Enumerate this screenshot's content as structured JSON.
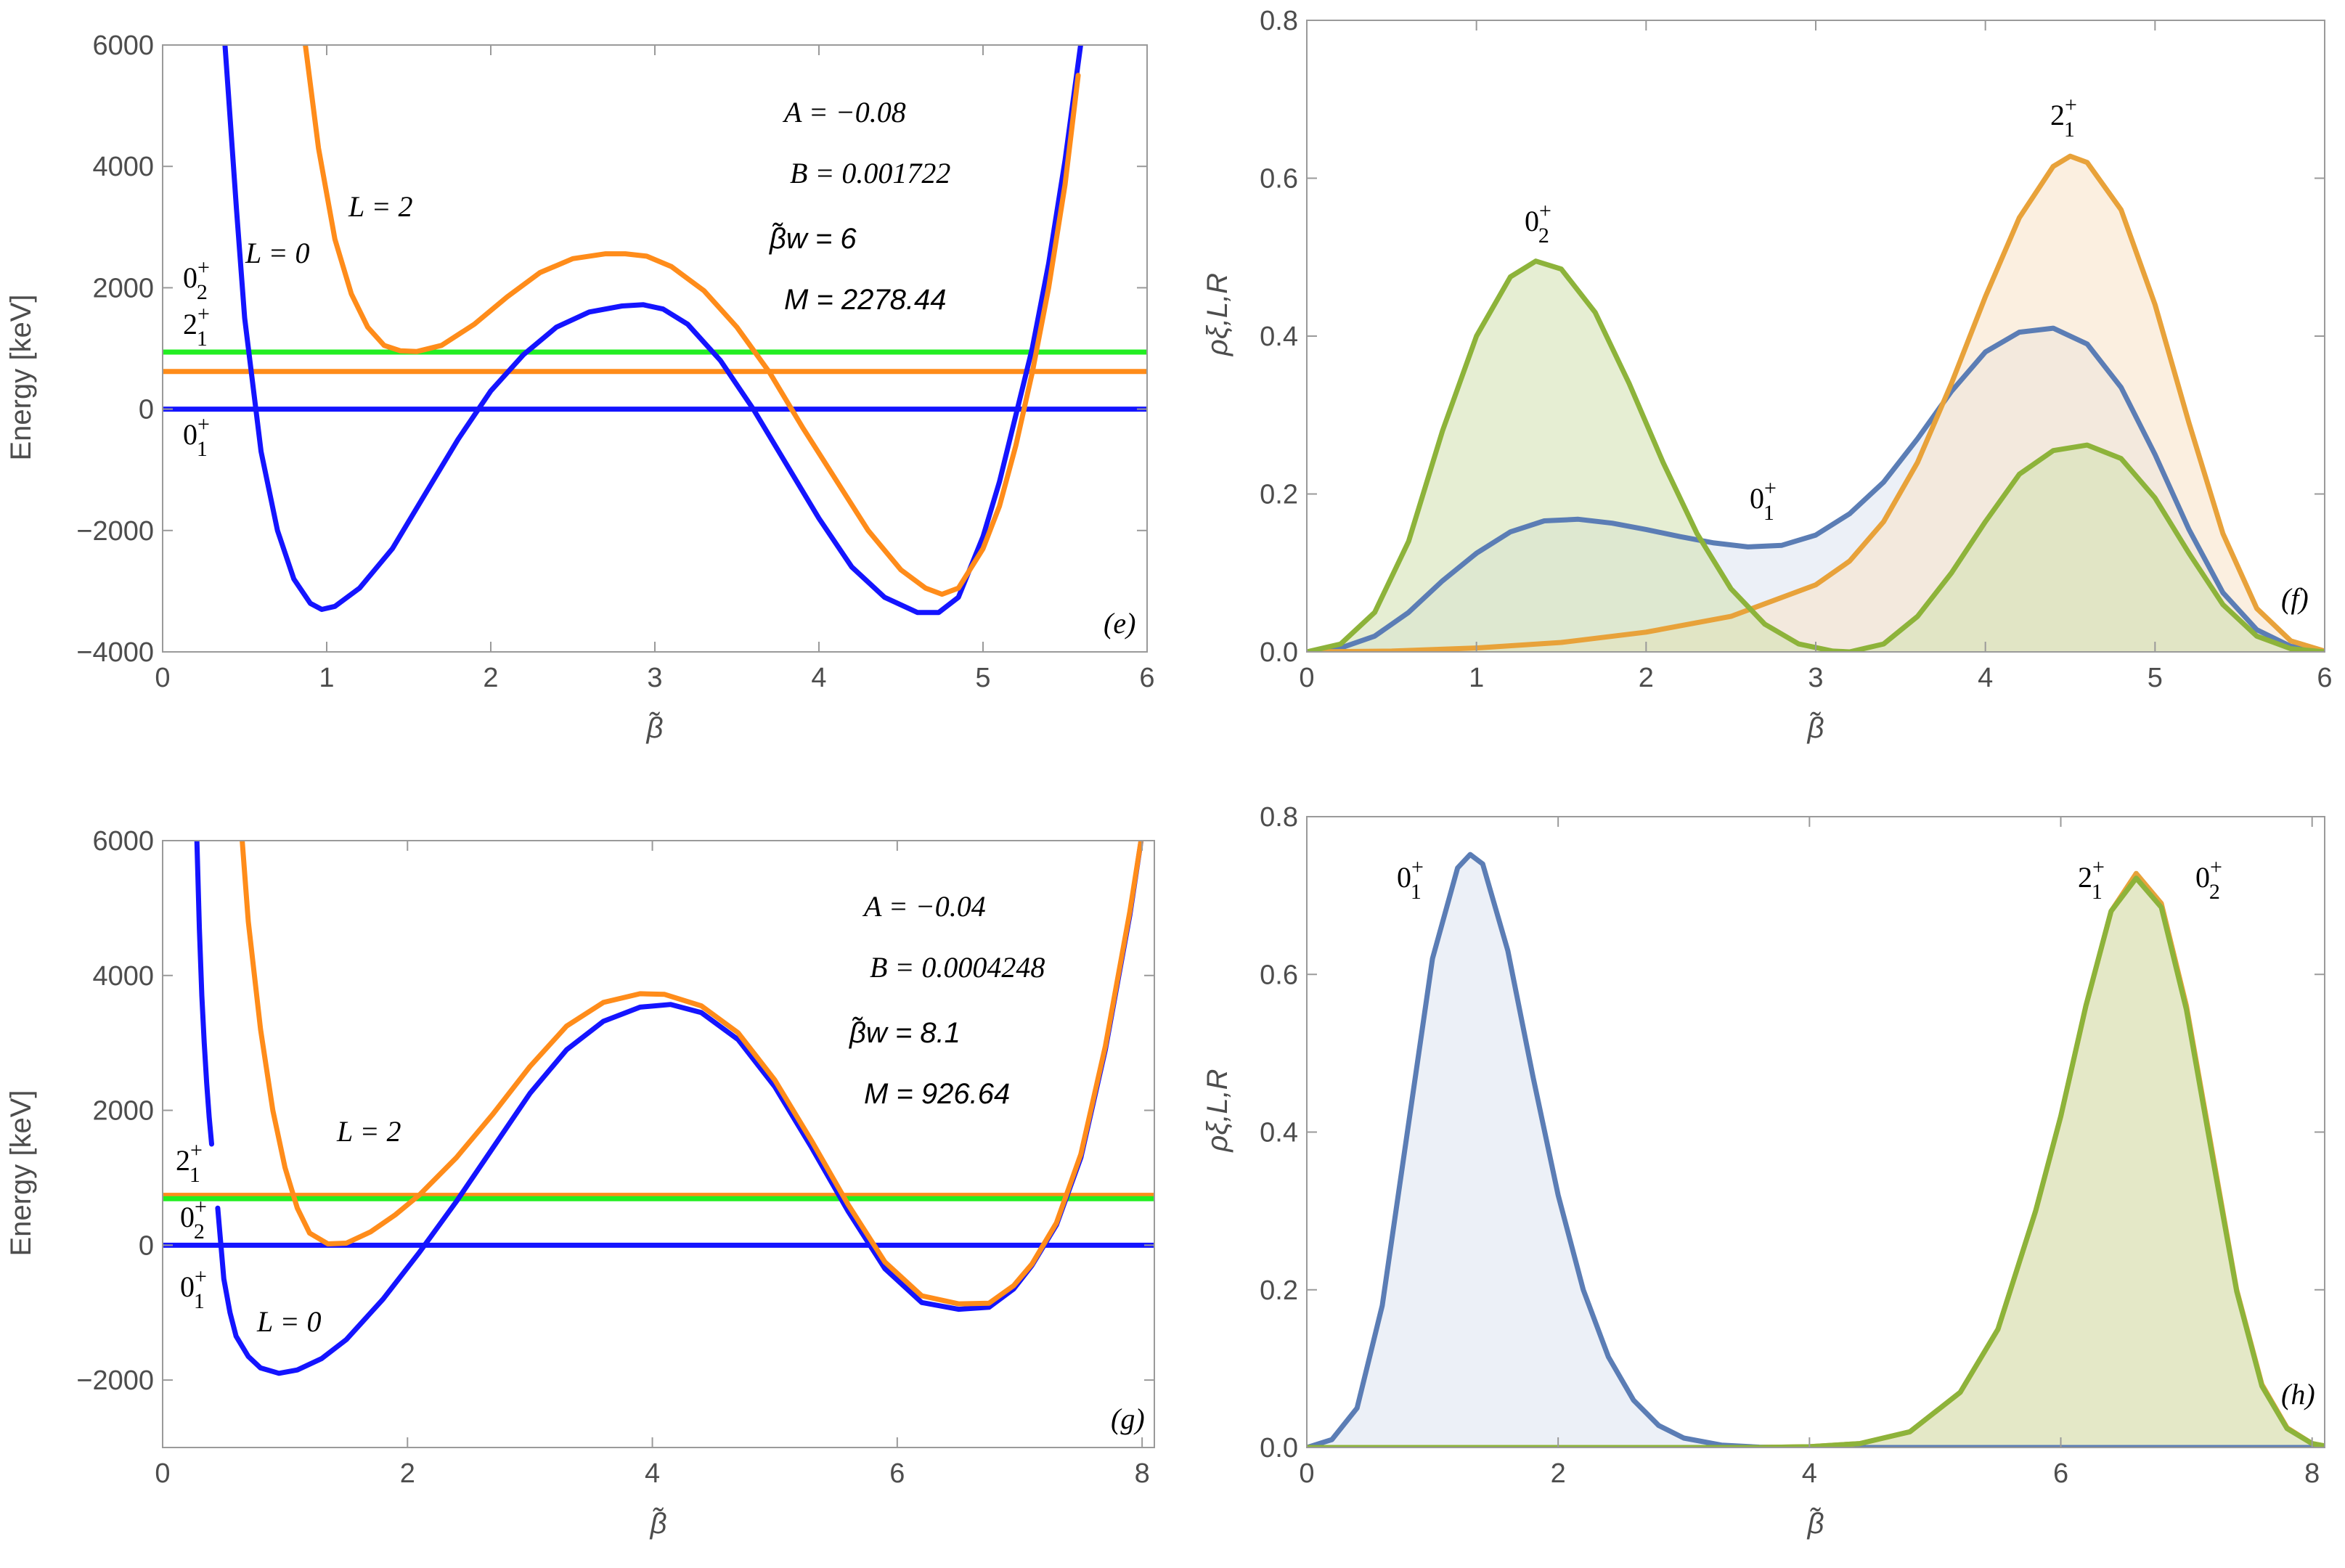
{
  "chart_data": [
    {
      "id": "e",
      "type": "line",
      "panel_label": "(e)",
      "xlabel": "β̃",
      "ylabel": "Energy [keV]",
      "xlim": [
        0,
        6
      ],
      "ylim": [
        -4000,
        6000
      ],
      "xticks": [
        0,
        1,
        2,
        3,
        4,
        5,
        6
      ],
      "yticks": [
        -4000,
        -2000,
        0,
        2000,
        4000,
        6000
      ],
      "params": {
        "A": "A = −0.08",
        "B": "B = 0.001722",
        "beta_w": "β̃w = 6",
        "M": "M = 2278.44"
      },
      "series": [
        {
          "name": "L=0",
          "label": "L = 0",
          "color": "#1414ff",
          "x": [
            0.38,
            0.45,
            0.5,
            0.6,
            0.7,
            0.8,
            0.9,
            0.97,
            1.05,
            1.2,
            1.4,
            1.6,
            1.8,
            2.0,
            2.2,
            2.4,
            2.6,
            2.8,
            2.93,
            3.05,
            3.2,
            3.4,
            3.6,
            3.8,
            4.0,
            4.2,
            4.4,
            4.6,
            4.73,
            4.85,
            5.0,
            5.1,
            5.2,
            5.3,
            5.4,
            5.5,
            5.6
          ],
          "y": [
            6000,
            3300,
            1500,
            -700,
            -2000,
            -2800,
            -3200,
            -3300,
            -3250,
            -2950,
            -2300,
            -1400,
            -500,
            300,
            900,
            1350,
            1600,
            1700,
            1720,
            1650,
            1400,
            800,
            0,
            -900,
            -1800,
            -2600,
            -3100,
            -3350,
            -3350,
            -3100,
            -2100,
            -1200,
            -100,
            1000,
            2400,
            4100,
            6100
          ]
        },
        {
          "name": "L=2",
          "label": "L = 2",
          "color": "#ff8c1a",
          "x": [
            0.87,
            0.95,
            1.05,
            1.15,
            1.25,
            1.35,
            1.45,
            1.55,
            1.7,
            1.9,
            2.1,
            2.3,
            2.5,
            2.7,
            2.82,
            2.95,
            3.1,
            3.3,
            3.5,
            3.7,
            3.9,
            4.1,
            4.3,
            4.5,
            4.65,
            4.75,
            4.85,
            5.0,
            5.1,
            5.2,
            5.3,
            5.4,
            5.5,
            5.58
          ],
          "y": [
            6000,
            4300,
            2800,
            1900,
            1350,
            1050,
            960,
            950,
            1050,
            1400,
            1850,
            2250,
            2480,
            2560,
            2560,
            2520,
            2350,
            1950,
            1350,
            600,
            -300,
            -1150,
            -2000,
            -2650,
            -2950,
            -3050,
            -2950,
            -2300,
            -1600,
            -600,
            600,
            2000,
            3700,
            5500
          ]
        },
        {
          "name": "0_1+",
          "label": "01+",
          "color": "#1414ff",
          "y_const": 0
        },
        {
          "name": "2_1+",
          "label": "21+",
          "color": "#ff8c1a",
          "y_const": 620
        },
        {
          "name": "0_2+",
          "label": "02+",
          "color": "#22ee22",
          "y_const": 940
        }
      ]
    },
    {
      "id": "f",
      "type": "area",
      "panel_label": "(f)",
      "xlabel": "β̃",
      "ylabel": "ρξ,L,R",
      "xlim": [
        0,
        6
      ],
      "ylim": [
        0,
        0.8
      ],
      "xticks": [
        0,
        1,
        2,
        3,
        4,
        5,
        6
      ],
      "yticks": [
        0.0,
        0.2,
        0.4,
        0.6,
        0.8
      ],
      "series": [
        {
          "name": "0_1+",
          "label": "01+",
          "color": "#5b7db5",
          "fill": "#dfe6f1",
          "x": [
            0,
            0.2,
            0.4,
            0.6,
            0.8,
            1.0,
            1.2,
            1.4,
            1.6,
            1.8,
            2.0,
            2.2,
            2.4,
            2.6,
            2.8,
            3.0,
            3.2,
            3.4,
            3.6,
            3.8,
            4.0,
            4.2,
            4.4,
            4.6,
            4.8,
            5.0,
            5.2,
            5.4,
            5.6,
            5.8,
            6.0
          ],
          "y": [
            0,
            0.005,
            0.02,
            0.05,
            0.09,
            0.125,
            0.152,
            0.166,
            0.168,
            0.163,
            0.155,
            0.146,
            0.138,
            0.133,
            0.135,
            0.148,
            0.175,
            0.215,
            0.27,
            0.33,
            0.38,
            0.405,
            0.41,
            0.39,
            0.335,
            0.25,
            0.155,
            0.075,
            0.028,
            0.007,
            0.001
          ]
        },
        {
          "name": "2_1+",
          "label": "21+",
          "color": "#e8a23a",
          "fill": "#f8e5cc",
          "x": [
            0,
            0.5,
            1.0,
            1.5,
            2.0,
            2.5,
            3.0,
            3.2,
            3.4,
            3.6,
            3.8,
            4.0,
            4.2,
            4.4,
            4.5,
            4.6,
            4.8,
            5.0,
            5.2,
            5.4,
            5.6,
            5.8,
            6.0
          ],
          "y": [
            0,
            0.001,
            0.005,
            0.012,
            0.025,
            0.045,
            0.085,
            0.115,
            0.165,
            0.24,
            0.34,
            0.45,
            0.55,
            0.615,
            0.628,
            0.62,
            0.56,
            0.44,
            0.29,
            0.15,
            0.055,
            0.014,
            0.001
          ]
        },
        {
          "name": "0_2+",
          "label": "02+",
          "color": "#8db33a",
          "fill": "#d6e2b5",
          "x": [
            0,
            0.2,
            0.4,
            0.6,
            0.8,
            1.0,
            1.2,
            1.35,
            1.5,
            1.7,
            1.9,
            2.1,
            2.3,
            2.5,
            2.7,
            2.9,
            3.1,
            3.2,
            3.4,
            3.6,
            3.8,
            4.0,
            4.2,
            4.4,
            4.6,
            4.8,
            5.0,
            5.2,
            5.4,
            5.6,
            5.8,
            6.0
          ],
          "y": [
            0,
            0.01,
            0.05,
            0.14,
            0.28,
            0.4,
            0.475,
            0.495,
            0.485,
            0.43,
            0.34,
            0.24,
            0.15,
            0.08,
            0.035,
            0.01,
            0.001,
            0.0,
            0.01,
            0.045,
            0.1,
            0.165,
            0.225,
            0.255,
            0.262,
            0.245,
            0.195,
            0.125,
            0.06,
            0.02,
            0.004,
            0.0
          ]
        }
      ]
    },
    {
      "id": "g",
      "type": "line",
      "panel_label": "(g)",
      "xlabel": "β̃",
      "ylabel": "Energy [keV]",
      "xlim": [
        0,
        8.1
      ],
      "ylim": [
        -3000,
        6000
      ],
      "xticks": [
        0,
        2,
        4,
        6,
        8
      ],
      "yticks": [
        -2000,
        0,
        2000,
        4000,
        6000
      ],
      "params": {
        "A": "A = −0.04",
        "B": "B = 0.0004248",
        "beta_w": "β̃w = 8.1",
        "M": "M = 926.64"
      },
      "series": [
        {
          "name": "L=0",
          "label": "L = 0",
          "color": "#1414ff",
          "x": [
            0.45,
            0.5,
            0.55,
            0.6,
            0.7,
            0.8,
            0.95,
            1.1,
            1.3,
            1.5,
            1.8,
            2.1,
            2.4,
            2.7,
            3.0,
            3.3,
            3.6,
            3.9,
            4.15,
            4.4,
            4.7,
            5.0,
            5.3,
            5.6,
            5.9,
            6.2,
            6.5,
            6.75,
            6.95,
            7.1,
            7.3,
            7.5,
            7.7,
            7.9,
            8.0
          ],
          "y": [
            550,
            -500,
            -1000,
            -1350,
            -1650,
            -1820,
            -1900,
            -1850,
            -1680,
            -1400,
            -800,
            -100,
            650,
            1450,
            2250,
            2900,
            3320,
            3530,
            3570,
            3450,
            3050,
            2350,
            1450,
            500,
            -350,
            -850,
            -950,
            -920,
            -650,
            -300,
            300,
            1300,
            2900,
            4900,
            6100
          ]
        },
        {
          "name": "L=0 (upper branch)",
          "label": "",
          "color": "#1414ff",
          "x": [
            0.28,
            0.3,
            0.32,
            0.34,
            0.36,
            0.38,
            0.4
          ],
          "y": [
            6000,
            4700,
            3700,
            3000,
            2400,
            1900,
            1500
          ]
        },
        {
          "name": "L=2",
          "label": "L = 2",
          "color": "#ff8c1a",
          "x": [
            0.65,
            0.7,
            0.8,
            0.9,
            1.0,
            1.1,
            1.2,
            1.35,
            1.5,
            1.7,
            1.9,
            2.1,
            2.4,
            2.7,
            3.0,
            3.3,
            3.6,
            3.9,
            4.1,
            4.4,
            4.7,
            5.0,
            5.3,
            5.6,
            5.9,
            6.2,
            6.5,
            6.75,
            6.95,
            7.1,
            7.3,
            7.5,
            7.7,
            7.9,
            8.0
          ],
          "y": [
            6000,
            4800,
            3200,
            2000,
            1150,
            550,
            180,
            20,
            30,
            200,
            450,
            750,
            1300,
            1950,
            2650,
            3250,
            3600,
            3730,
            3720,
            3550,
            3150,
            2450,
            1550,
            600,
            -250,
            -750,
            -870,
            -860,
            -600,
            -280,
            330,
            1350,
            2950,
            4950,
            6100
          ]
        },
        {
          "name": "0_1+",
          "label": "01+",
          "color": "#1414ff",
          "y_const": 0
        },
        {
          "name": "2_1+",
          "label": "21+",
          "color": "#ff8c1a",
          "y_const": 740
        },
        {
          "name": "0_2+",
          "label": "02+",
          "color": "#22ee22",
          "y_const": 690
        }
      ]
    },
    {
      "id": "h",
      "type": "area",
      "panel_label": "(h)",
      "xlabel": "β̃",
      "ylabel": "ρξ,L,R",
      "xlim": [
        0,
        8.1
      ],
      "ylim": [
        0,
        0.8
      ],
      "xticks": [
        0,
        2,
        4,
        6,
        8
      ],
      "yticks": [
        0.0,
        0.2,
        0.4,
        0.6,
        0.8
      ],
      "series": [
        {
          "name": "0_1+",
          "label": "01+",
          "color": "#5b7db5",
          "fill": "#dfe6f1",
          "x": [
            0,
            0.2,
            0.4,
            0.6,
            0.8,
            1.0,
            1.2,
            1.3,
            1.4,
            1.6,
            1.8,
            2.0,
            2.2,
            2.4,
            2.6,
            2.8,
            3.0,
            3.3,
            3.6,
            4.0,
            8.1
          ],
          "y": [
            0,
            0.01,
            0.05,
            0.18,
            0.4,
            0.62,
            0.735,
            0.752,
            0.74,
            0.63,
            0.47,
            0.32,
            0.2,
            0.115,
            0.06,
            0.028,
            0.012,
            0.003,
            0.0005,
            0,
            0
          ]
        },
        {
          "name": "2_1+",
          "label": "21+",
          "color": "#e8a23a",
          "fill": "#f8e5cc",
          "x": [
            0,
            3.6,
            4.0,
            4.4,
            4.8,
            5.2,
            5.5,
            5.8,
            6.0,
            6.2,
            6.4,
            6.6,
            6.8,
            7.0,
            7.2,
            7.4,
            7.6,
            7.8,
            8.0,
            8.1
          ],
          "y": [
            0,
            0,
            0.001,
            0.005,
            0.02,
            0.07,
            0.15,
            0.3,
            0.42,
            0.56,
            0.68,
            0.728,
            0.69,
            0.56,
            0.38,
            0.2,
            0.08,
            0.025,
            0.005,
            0.002
          ]
        },
        {
          "name": "0_2+",
          "label": "02+",
          "color": "#8db33a",
          "fill": "#d6e2b5",
          "x": [
            0,
            3.6,
            4.0,
            4.4,
            4.8,
            5.2,
            5.5,
            5.8,
            6.0,
            6.2,
            6.4,
            6.6,
            6.8,
            7.0,
            7.2,
            7.4,
            7.6,
            7.8,
            8.0,
            8.1
          ],
          "y": [
            0,
            0,
            0.001,
            0.005,
            0.02,
            0.07,
            0.15,
            0.3,
            0.42,
            0.56,
            0.68,
            0.722,
            0.685,
            0.555,
            0.375,
            0.198,
            0.078,
            0.024,
            0.005,
            0.002
          ]
        }
      ]
    }
  ]
}
